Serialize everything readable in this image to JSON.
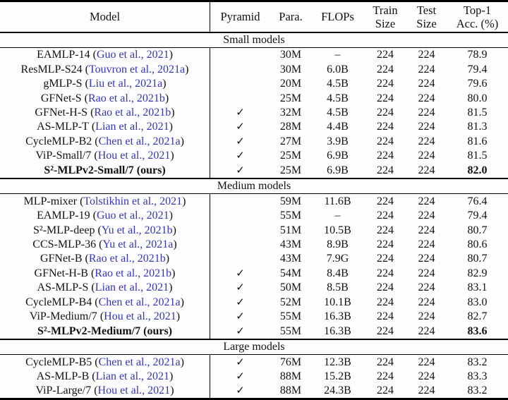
{
  "header": {
    "model": "Model",
    "pyramid": "Pyramid",
    "para": "Para.",
    "flops": "FLOPs",
    "train": [
      "Train",
      "Size"
    ],
    "test": [
      "Test",
      "Size"
    ],
    "top1": [
      "Top-1",
      "Acc. (%)"
    ]
  },
  "checkmark": "✓",
  "colors": {
    "citation_blue": "#3535b8",
    "text": "#121212",
    "rule": "#000000",
    "background": "#fdfdfd"
  },
  "sections": [
    {
      "label": "Small models",
      "rows": [
        {
          "model": "EAMLP-14",
          "cite": "Guo et al., 2021",
          "pyramid": false,
          "para": "30M",
          "flops": "–",
          "train": "224",
          "test": "224",
          "acc": "78.9",
          "bold": false
        },
        {
          "model": "ResMLP-S24",
          "cite": "Touvron et al., 2021a",
          "pyramid": false,
          "para": "30M",
          "flops": "6.0B",
          "train": "224",
          "test": "224",
          "acc": "79.4",
          "bold": false
        },
        {
          "model": "gMLP-S",
          "cite": "Liu et al., 2021a",
          "pyramid": false,
          "para": "20M",
          "flops": "4.5B",
          "train": "224",
          "test": "224",
          "acc": "79.6",
          "bold": false
        },
        {
          "model": "GFNet-S",
          "cite": "Rao et al., 2021b",
          "pyramid": false,
          "para": "25M",
          "flops": "4.5B",
          "train": "224",
          "test": "224",
          "acc": "80.0",
          "bold": false
        },
        {
          "model": "GFNet-H-S",
          "cite": "Rao et al., 2021b",
          "pyramid": true,
          "para": "32M",
          "flops": "4.5B",
          "train": "224",
          "test": "224",
          "acc": "81.5",
          "bold": false
        },
        {
          "model": "AS-MLP-T",
          "cite": "Lian et al., 2021",
          "pyramid": true,
          "para": "28M",
          "flops": "4.4B",
          "train": "224",
          "test": "224",
          "acc": "81.3",
          "bold": false
        },
        {
          "model": "CycleMLP-B2",
          "cite": "Chen et al., 2021a",
          "pyramid": true,
          "para": "27M",
          "flops": "3.9B",
          "train": "224",
          "test": "224",
          "acc": "81.6",
          "bold": false
        },
        {
          "model": "ViP-Small/7",
          "cite": "Hou et al., 2021",
          "pyramid": true,
          "para": "25M",
          "flops": "6.9B",
          "train": "224",
          "test": "224",
          "acc": "81.5",
          "bold": false
        },
        {
          "model": "S²-MLPv2-Small/7 (ours)",
          "cite": null,
          "pyramid": true,
          "para": "25M",
          "flops": "6.9B",
          "train": "224",
          "test": "224",
          "acc": "82.0",
          "bold": true
        }
      ]
    },
    {
      "label": "Medium models",
      "rows": [
        {
          "model": "MLP-mixer",
          "cite": "Tolstikhin et al., 2021",
          "pyramid": false,
          "para": "59M",
          "flops": "11.6B",
          "train": "224",
          "test": "224",
          "acc": "76.4",
          "bold": false
        },
        {
          "model": "EAMLP-19",
          "cite": "Guo et al., 2021",
          "pyramid": false,
          "para": "55M",
          "flops": "–",
          "train": "224",
          "test": "224",
          "acc": "79.4",
          "bold": false
        },
        {
          "model": "S²-MLP-deep",
          "cite": "Yu et al., 2021b",
          "pyramid": false,
          "para": "51M",
          "flops": "10.5B",
          "train": "224",
          "test": "224",
          "acc": "80.7",
          "bold": false
        },
        {
          "model": "CCS-MLP-36",
          "cite": "Yu et al., 2021a",
          "pyramid": false,
          "para": "43M",
          "flops": "8.9B",
          "train": "224",
          "test": "224",
          "acc": "80.6",
          "bold": false
        },
        {
          "model": "GFNet-B",
          "cite": "Rao et al., 2021b",
          "pyramid": false,
          "para": "43M",
          "flops": "7.9G",
          "train": "224",
          "test": "224",
          "acc": "80.7",
          "bold": false
        },
        {
          "model": "GFNet-H-B",
          "cite": "Rao et al., 2021b",
          "pyramid": true,
          "para": "54M",
          "flops": "8.4B",
          "train": "224",
          "test": "224",
          "acc": "82.9",
          "bold": false
        },
        {
          "model": "AS-MLP-S",
          "cite": "Lian et al., 2021",
          "pyramid": true,
          "para": "50M",
          "flops": "8.5B",
          "train": "224",
          "test": "224",
          "acc": "83.1",
          "bold": false
        },
        {
          "model": "CycleMLP-B4",
          "cite": "Chen et al., 2021a",
          "pyramid": true,
          "para": "52M",
          "flops": "10.1B",
          "train": "224",
          "test": "224",
          "acc": "83.0",
          "bold": false
        },
        {
          "model": "ViP-Medium/7",
          "cite": "Hou et al., 2021",
          "pyramid": true,
          "para": "55M",
          "flops": "16.3B",
          "train": "224",
          "test": "224",
          "acc": "82.7",
          "bold": false
        },
        {
          "model": "S²-MLPv2-Medium/7 (ours)",
          "cite": null,
          "pyramid": true,
          "para": "55M",
          "flops": "16.3B",
          "train": "224",
          "test": "224",
          "acc": "83.6",
          "bold": true
        }
      ]
    },
    {
      "label": "Large models",
      "rows": [
        {
          "model": "CycleMLP-B5",
          "cite": "Chen et al., 2021a",
          "pyramid": true,
          "para": "76M",
          "flops": "12.3B",
          "train": "224",
          "test": "224",
          "acc": "83.2",
          "bold": false
        },
        {
          "model": "AS-MLP-B",
          "cite": "Lian et al., 2021",
          "pyramid": true,
          "para": "88M",
          "flops": "15.2B",
          "train": "224",
          "test": "224",
          "acc": "83.3",
          "bold": false
        },
        {
          "model": "ViP-Large/7",
          "cite": "Hou et al., 2021",
          "pyramid": true,
          "para": "88M",
          "flops": "24.3B",
          "train": "224",
          "test": "224",
          "acc": "83.2",
          "bold": false
        }
      ]
    }
  ]
}
